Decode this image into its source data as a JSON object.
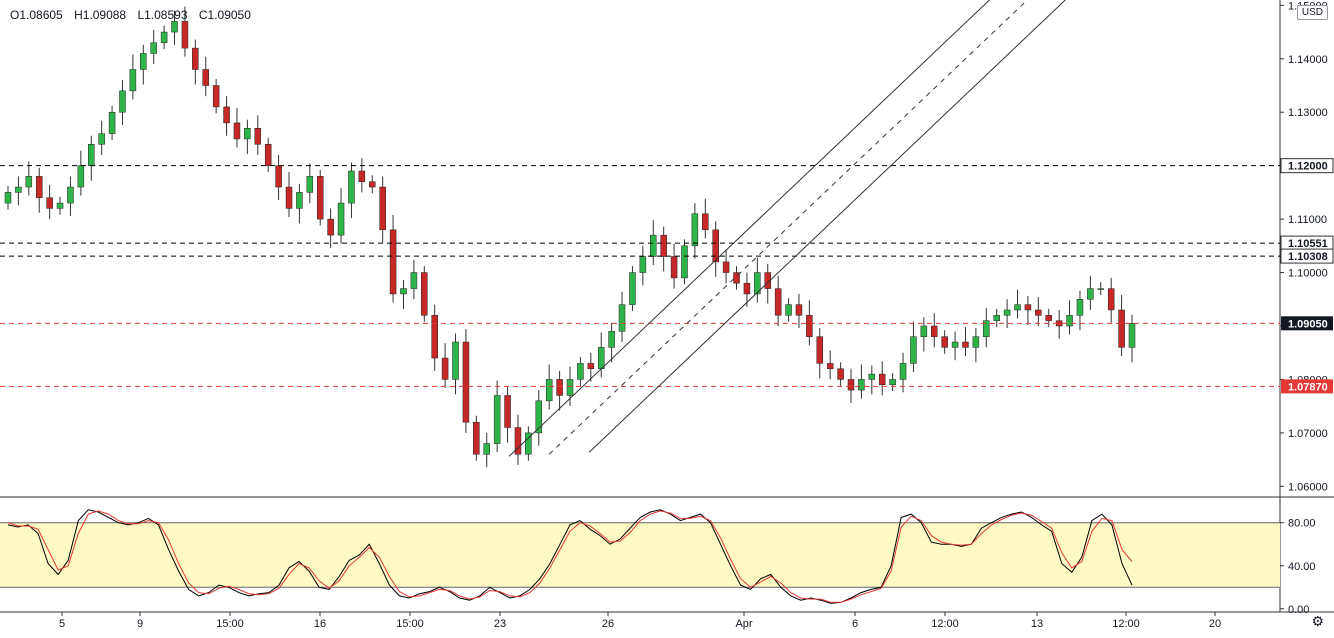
{
  "header": {
    "open": "O1.08605",
    "high": "H1.09088",
    "low": "L1.08593",
    "close": "C1.09050",
    "currency": "USD"
  },
  "chart_data": [
    {
      "type": "candlestick",
      "y_axis": {
        "ticks": [
          1.06,
          1.07,
          1.08,
          1.09,
          1.1,
          1.11,
          1.12,
          1.13,
          1.14,
          1.15
        ],
        "tick_labels": [
          "1.06000",
          "1.07000",
          "1.08000",
          "1.09000",
          "1.10000",
          "1.11000",
          "1.12000",
          "1.13000",
          "1.14000",
          "1.15000"
        ],
        "range": [
          1.058,
          1.151
        ]
      },
      "x_axis": {
        "tick_labels": [
          "5",
          "9",
          "15:00",
          "16",
          "15:00",
          "23",
          "26",
          "Apr",
          "6",
          "12:00",
          "13",
          "12:00",
          "20"
        ]
      },
      "horizontal_lines": [
        {
          "value": 1.12,
          "label": "1.12000",
          "style": "dashed",
          "color": "#000000"
        },
        {
          "value": 1.10551,
          "label": "1.10551",
          "style": "dashed",
          "color": "#000000"
        },
        {
          "value": 1.10308,
          "label": "1.10308",
          "style": "dashed",
          "color": "#000000"
        },
        {
          "value": 1.0905,
          "label": "1.09050",
          "style": "dashed",
          "color": "#e53935"
        },
        {
          "value": 1.0787,
          "label": "1.07870",
          "style": "dashed",
          "color": "#e53935"
        }
      ],
      "current_price_label": "1.09050",
      "colors": {
        "up": "#26a69a",
        "up_body": "#2fb44a",
        "down": "#c62828"
      },
      "pitchfork": "ascending parallel channel with dashed median line from the March 20 low",
      "closes_approx": [
        1.115,
        1.116,
        1.118,
        1.114,
        1.112,
        1.113,
        1.116,
        1.12,
        1.124,
        1.126,
        1.13,
        1.134,
        1.138,
        1.141,
        1.143,
        1.145,
        1.147,
        1.142,
        1.138,
        1.135,
        1.131,
        1.128,
        1.125,
        1.127,
        1.124,
        1.12,
        1.116,
        1.112,
        1.115,
        1.118,
        1.11,
        1.107,
        1.113,
        1.119,
        1.117,
        1.116,
        1.108,
        1.096,
        1.097,
        1.1,
        1.092,
        1.084,
        1.08,
        1.087,
        1.072,
        1.066,
        1.068,
        1.077,
        1.071,
        1.066,
        1.07,
        1.076,
        1.08,
        1.077,
        1.08,
        1.083,
        1.082,
        1.086,
        1.089,
        1.094,
        1.1,
        1.103,
        1.107,
        1.103,
        1.099,
        1.105,
        1.111,
        1.108,
        1.102,
        1.1,
        1.098,
        1.096,
        1.1,
        1.097,
        1.092,
        1.094,
        1.092,
        1.088,
        1.083,
        1.082,
        1.08,
        1.078,
        1.08,
        1.081,
        1.079,
        1.08,
        1.083,
        1.088,
        1.09,
        1.088,
        1.086,
        1.087,
        1.086,
        1.088,
        1.091,
        1.092,
        1.093,
        1.094,
        1.093,
        1.092,
        1.091,
        1.09,
        1.092,
        1.095,
        1.097,
        1.097,
        1.093,
        1.086,
        1.0905
      ]
    },
    {
      "type": "line",
      "name": "Stochastic",
      "y_axis": {
        "ticks": [
          0,
          40,
          80
        ],
        "tick_labels": [
          "0.00",
          "40.00",
          "80.00"
        ],
        "range": [
          -3,
          103
        ]
      },
      "band": {
        "upper": 80,
        "lower": 20,
        "fill": "#fff9c4"
      },
      "series": [
        {
          "color": "#000000",
          "values": [
            78,
            76,
            78,
            70,
            42,
            32,
            45,
            82,
            92,
            90,
            85,
            80,
            78,
            80,
            84,
            78,
            55,
            35,
            18,
            12,
            15,
            22,
            20,
            15,
            12,
            14,
            15,
            22,
            38,
            44,
            35,
            20,
            18,
            30,
            45,
            50,
            60,
            42,
            22,
            12,
            10,
            14,
            16,
            20,
            16,
            10,
            8,
            12,
            20,
            15,
            10,
            12,
            18,
            28,
            42,
            60,
            78,
            82,
            74,
            68,
            60,
            65,
            75,
            85,
            90,
            92,
            88,
            82,
            85,
            88,
            80,
            60,
            40,
            22,
            18,
            28,
            32,
            20,
            12,
            8,
            10,
            8,
            5,
            6,
            10,
            15,
            18,
            20,
            40,
            85,
            88,
            80,
            62,
            60,
            60,
            58,
            60,
            75,
            80,
            85,
            88,
            90,
            85,
            78,
            72,
            42,
            34,
            48,
            82,
            88,
            78,
            42,
            22
          ]
        },
        {
          "color": "#e53935",
          "values": [
            80,
            77,
            77,
            74,
            55,
            36,
            40,
            70,
            88,
            91,
            88,
            82,
            79,
            79,
            82,
            80,
            64,
            42,
            24,
            15,
            14,
            19,
            21,
            18,
            14,
            13,
            14,
            19,
            32,
            42,
            38,
            26,
            19,
            26,
            40,
            48,
            57,
            48,
            30,
            16,
            11,
            12,
            15,
            18,
            17,
            12,
            9,
            11,
            17,
            16,
            12,
            11,
            15,
            24,
            38,
            55,
            72,
            80,
            77,
            70,
            62,
            63,
            71,
            82,
            88,
            91,
            89,
            84,
            84,
            86,
            82,
            66,
            46,
            28,
            20,
            25,
            30,
            24,
            15,
            10,
            9,
            9,
            6,
            6,
            9,
            13,
            16,
            19,
            35,
            76,
            86,
            82,
            68,
            62,
            60,
            59,
            60,
            70,
            78,
            83,
            87,
            89,
            87,
            81,
            75,
            52,
            38,
            44,
            72,
            84,
            82,
            55,
            44
          ]
        }
      ]
    }
  ]
}
